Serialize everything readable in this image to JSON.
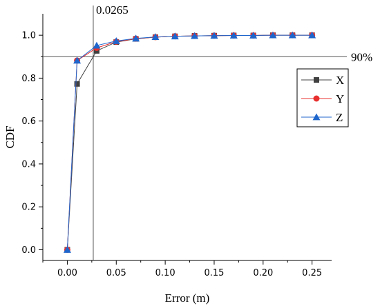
{
  "chart_data": {
    "type": "line",
    "title": "",
    "xlabel": "Error (m)",
    "ylabel": "CDF",
    "xlim": [
      -0.025,
      0.27
    ],
    "ylim": [
      -0.05,
      1.1
    ],
    "x_ticks": [
      0.0,
      0.05,
      0.1,
      0.15,
      0.2,
      0.25
    ],
    "x_tick_labels": [
      "0.00",
      "0.05",
      "0.10",
      "0.15",
      "0.20",
      "0.25"
    ],
    "y_ticks": [
      0.0,
      0.2,
      0.4,
      0.6,
      0.8,
      1.0
    ],
    "y_tick_labels": [
      "0.0",
      "0.2",
      "0.4",
      "0.6",
      "0.8",
      "1.0"
    ],
    "grid": false,
    "legend_position": "right",
    "x": [
      0.0,
      0.01,
      0.03,
      0.05,
      0.07,
      0.09,
      0.11,
      0.13,
      0.15,
      0.17,
      0.19,
      0.21,
      0.23,
      0.25
    ],
    "series": [
      {
        "name": "X",
        "color": "#404040",
        "marker": "square",
        "values": [
          0.0,
          0.773,
          0.927,
          0.968,
          0.983,
          0.991,
          0.995,
          0.997,
          0.998,
          0.999,
          0.999,
          1.0,
          1.0,
          1.0
        ]
      },
      {
        "name": "Y",
        "color": "#e8302f",
        "marker": "circle",
        "values": [
          0.0,
          0.882,
          0.941,
          0.97,
          0.984,
          0.991,
          0.995,
          0.997,
          0.998,
          0.999,
          0.999,
          1.0,
          1.0,
          1.0
        ]
      },
      {
        "name": "Z",
        "color": "#1f66cc",
        "marker": "triangle",
        "values": [
          0.0,
          0.882,
          0.952,
          0.973,
          0.985,
          0.992,
          0.995,
          0.997,
          0.998,
          0.999,
          0.999,
          1.0,
          1.0,
          1.0
        ]
      }
    ],
    "annotations": {
      "vline": {
        "x": 0.0265,
        "label": "0.0265"
      },
      "hline": {
        "y": 0.9,
        "label": "90%"
      }
    }
  }
}
